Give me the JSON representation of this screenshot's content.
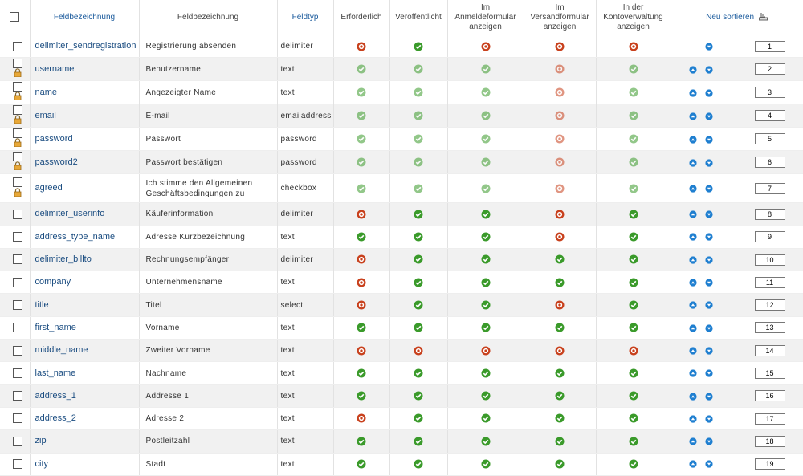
{
  "columns": [
    "Feldbezeichnung",
    "Feldbezeichnung",
    "Feldtyp",
    "Erforderlich",
    "Veröffentlicht",
    "Im Anmeldeformular anzeigen",
    "Im Versandformular anzeigen",
    "In der Kontoverwaltung anzeigen",
    "Neu sortieren"
  ],
  "rows": [
    {
      "name": "delimiter_sendregistration",
      "label": "Registrierung absenden",
      "type": "delimiter",
      "required": false,
      "published": true,
      "registration": false,
      "shipment": false,
      "account": false,
      "locked": false,
      "order": 1
    },
    {
      "name": "username",
      "label": "Benutzername",
      "type": "text",
      "required": true,
      "published": true,
      "registration": true,
      "shipment": false,
      "account": true,
      "locked": true,
      "order": 2
    },
    {
      "name": "name",
      "label": "Angezeigter Name",
      "type": "text",
      "required": true,
      "published": true,
      "registration": true,
      "shipment": false,
      "account": true,
      "locked": true,
      "order": 3
    },
    {
      "name": "email",
      "label": "E-mail",
      "type": "emailaddress",
      "required": true,
      "published": true,
      "registration": true,
      "shipment": false,
      "account": true,
      "locked": true,
      "order": 4
    },
    {
      "name": "password",
      "label": "Passwort",
      "type": "password",
      "required": true,
      "published": true,
      "registration": true,
      "shipment": false,
      "account": true,
      "locked": true,
      "order": 5
    },
    {
      "name": "password2",
      "label": "Passwort bestätigen",
      "type": "password",
      "required": true,
      "published": true,
      "registration": true,
      "shipment": false,
      "account": true,
      "locked": true,
      "order": 6
    },
    {
      "name": "agreed",
      "label": "Ich stimme den Allgemeinen Geschäftsbedingungen zu",
      "type": "checkbox",
      "required": true,
      "published": true,
      "registration": true,
      "shipment": false,
      "account": true,
      "locked": true,
      "order": 7
    },
    {
      "name": "delimiter_userinfo",
      "label": "Käuferinformation",
      "type": "delimiter",
      "required": false,
      "published": true,
      "registration": true,
      "shipment": false,
      "account": true,
      "locked": false,
      "order": 8
    },
    {
      "name": "address_type_name",
      "label": "Adresse Kurzbezeichnung",
      "type": "text",
      "required": true,
      "published": true,
      "registration": true,
      "shipment": false,
      "account": true,
      "locked": false,
      "order": 9
    },
    {
      "name": "delimiter_billto",
      "label": "Rechnungsempfänger",
      "type": "delimiter",
      "required": false,
      "published": true,
      "registration": true,
      "shipment": true,
      "account": true,
      "locked": false,
      "order": 10
    },
    {
      "name": "company",
      "label": "Unternehmensname",
      "type": "text",
      "required": false,
      "published": true,
      "registration": true,
      "shipment": true,
      "account": true,
      "locked": false,
      "order": 11
    },
    {
      "name": "title",
      "label": "Titel",
      "type": "select",
      "required": false,
      "published": true,
      "registration": true,
      "shipment": false,
      "account": true,
      "locked": false,
      "order": 12
    },
    {
      "name": "first_name",
      "label": "Vorname",
      "type": "text",
      "required": true,
      "published": true,
      "registration": true,
      "shipment": true,
      "account": true,
      "locked": false,
      "order": 13
    },
    {
      "name": "middle_name",
      "label": "Zweiter Vorname",
      "type": "text",
      "required": false,
      "published": false,
      "registration": false,
      "shipment": false,
      "account": false,
      "locked": false,
      "order": 14
    },
    {
      "name": "last_name",
      "label": "Nachname",
      "type": "text",
      "required": true,
      "published": true,
      "registration": true,
      "shipment": true,
      "account": true,
      "locked": false,
      "order": 15
    },
    {
      "name": "address_1",
      "label": "Addresse 1",
      "type": "text",
      "required": true,
      "published": true,
      "registration": true,
      "shipment": true,
      "account": true,
      "locked": false,
      "order": 16
    },
    {
      "name": "address_2",
      "label": "Adresse 2",
      "type": "text",
      "required": false,
      "published": true,
      "registration": true,
      "shipment": true,
      "account": true,
      "locked": false,
      "order": 17
    },
    {
      "name": "zip",
      "label": "Postleitzahl",
      "type": "text",
      "required": true,
      "published": true,
      "registration": true,
      "shipment": true,
      "account": true,
      "locked": false,
      "order": 18
    },
    {
      "name": "city",
      "label": "Stadt",
      "type": "text",
      "required": true,
      "published": true,
      "registration": true,
      "shipment": true,
      "account": true,
      "locked": false,
      "order": 19
    }
  ]
}
